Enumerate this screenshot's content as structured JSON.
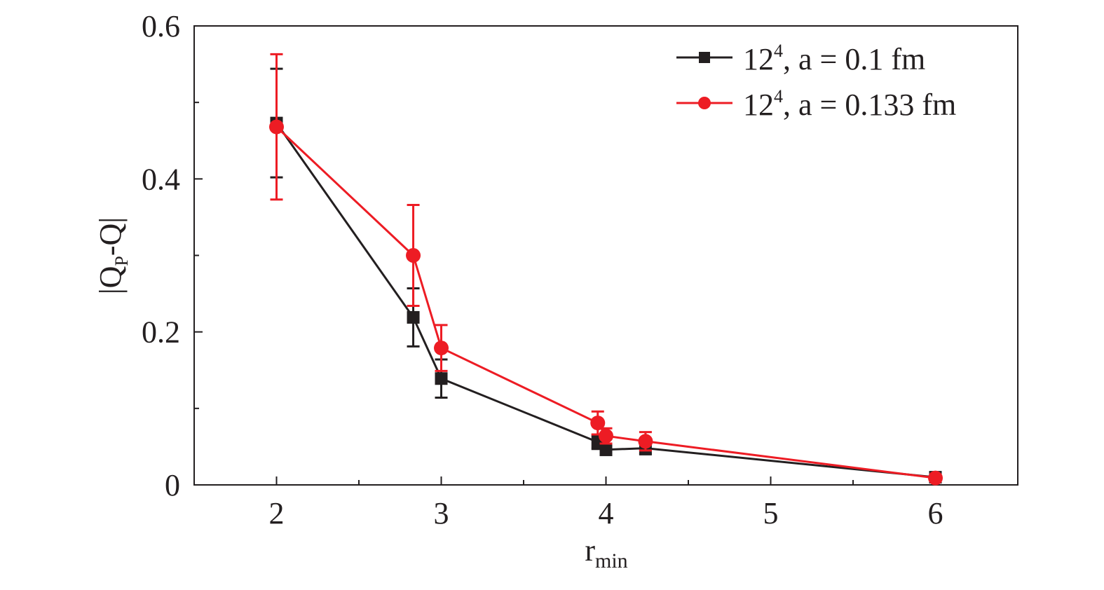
{
  "chart_data": {
    "type": "line",
    "title": "",
    "xlabel": {
      "main": "r",
      "sub": "min"
    },
    "ylabel": {
      "pre": "|Q",
      "sub": "P",
      "post": "-Q|"
    },
    "xlim": [
      1.5,
      6.5
    ],
    "ylim": [
      0,
      0.6
    ],
    "x_ticks": [
      2,
      3,
      4,
      5,
      6
    ],
    "x_tick_labels": [
      "2",
      "3",
      "4",
      "5",
      "6"
    ],
    "y_ticks": [
      0,
      0.2,
      0.4,
      0.6
    ],
    "y_tick_labels": [
      "0",
      "0.2",
      "0.4",
      "0.6"
    ],
    "grid": false,
    "legend_placement": "top-right",
    "series": [
      {
        "name": "12^4, a = 0.1 fm",
        "legend": {
          "base": "12",
          "sup": "4",
          "rest": ", a = 0.1 fm"
        },
        "color": "#231f20",
        "marker": "square",
        "x": [
          2,
          2.83,
          3,
          3.95,
          4,
          4.24,
          6
        ],
        "y": [
          0.473,
          0.219,
          0.139,
          0.056,
          0.046,
          0.048,
          0.01
        ],
        "yerr": [
          0.071,
          0.038,
          0.025,
          0.009,
          0.007,
          0.008,
          0.004
        ]
      },
      {
        "name": "12^4, a = 0.133 fm",
        "legend": {
          "base": "12",
          "sup": "4",
          "rest": ", a = 0.133 fm"
        },
        "color": "#ed1c24",
        "marker": "circle",
        "x": [
          2,
          2.83,
          3,
          3.95,
          4,
          4.24,
          6
        ],
        "y": [
          0.468,
          0.3,
          0.179,
          0.081,
          0.064,
          0.057,
          0.009
        ],
        "yerr": [
          0.095,
          0.066,
          0.03,
          0.015,
          0.01,
          0.012,
          0.004
        ]
      }
    ]
  }
}
